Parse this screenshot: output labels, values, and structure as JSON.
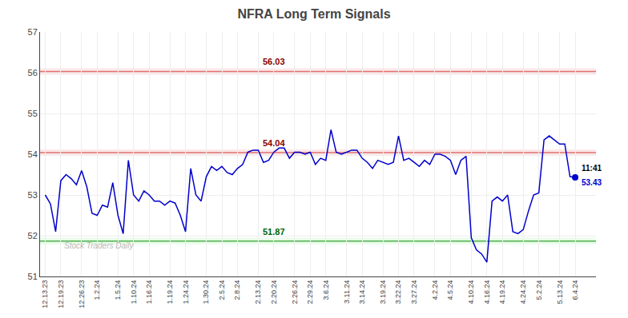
{
  "chart_data": {
    "type": "line",
    "title": "NFRA Long Term Signals",
    "watermark": "Stock Traders Daily",
    "categories": [
      "12.13.23",
      null,
      null,
      "12.19.23",
      null,
      null,
      null,
      "12.26.23",
      null,
      null,
      "1.2.24",
      null,
      null,
      null,
      "1.5.24",
      null,
      null,
      "1.10.24",
      null,
      null,
      "1.16.24",
      null,
      null,
      null,
      "1.19.24",
      null,
      null,
      "1.24.24",
      null,
      null,
      null,
      "1.30.24",
      null,
      null,
      "2.5.24",
      null,
      null,
      "2.8.24",
      null,
      null,
      null,
      "2.13.24",
      null,
      null,
      "2.20.24",
      null,
      null,
      null,
      "2.26.24",
      null,
      null,
      "2.29.24",
      null,
      null,
      "3.6.24",
      null,
      null,
      null,
      "3.11.24",
      null,
      null,
      "3.14.24",
      null,
      null,
      null,
      "3.19.24",
      null,
      null,
      "3.22.24",
      null,
      null,
      "3.27.24",
      null,
      null,
      null,
      "4.2.24",
      null,
      null,
      "4.5.24",
      null,
      null,
      null,
      "4.10.24",
      null,
      null,
      "4.16.24",
      null,
      null,
      "4.19.24",
      null,
      null,
      null,
      "4.24.24",
      null,
      null,
      "5.2.24",
      null,
      null,
      null,
      "5.13.24",
      null,
      null,
      "6.4.24"
    ],
    "values": [
      53.0,
      52.78,
      52.1,
      53.35,
      53.5,
      53.4,
      53.25,
      53.6,
      53.2,
      52.55,
      52.5,
      52.75,
      52.7,
      53.3,
      52.5,
      52.05,
      53.85,
      53.0,
      52.85,
      53.1,
      53.0,
      52.85,
      52.85,
      52.75,
      52.85,
      52.8,
      52.5,
      52.1,
      53.65,
      53.0,
      52.85,
      53.45,
      53.7,
      53.6,
      53.7,
      53.55,
      53.5,
      53.65,
      53.75,
      54.05,
      54.1,
      54.1,
      53.8,
      53.85,
      54.05,
      54.15,
      54.15,
      53.9,
      54.05,
      54.05,
      54.0,
      54.05,
      53.75,
      53.9,
      53.85,
      54.6,
      54.05,
      54.0,
      54.05,
      54.1,
      54.1,
      53.9,
      53.8,
      53.65,
      53.85,
      53.8,
      53.75,
      53.8,
      54.45,
      53.85,
      53.9,
      53.8,
      53.7,
      53.85,
      53.75,
      54.0,
      54.0,
      53.95,
      53.85,
      53.5,
      53.85,
      53.95,
      51.95,
      51.65,
      51.55,
      51.35,
      52.85,
      52.95,
      52.85,
      53.0,
      52.1,
      52.05,
      52.15,
      52.6,
      53.0,
      53.05,
      54.35,
      54.45,
      54.35,
      54.25,
      54.25,
      53.45,
      53.43
    ],
    "color": "#0000cc",
    "ylim": [
      51,
      57
    ],
    "yticks": [
      51,
      52,
      53,
      54,
      55,
      56,
      57
    ],
    "grid": true,
    "hlines": [
      {
        "value": 56.03,
        "label": "56.03",
        "color": "#e07070",
        "band_color": "#fce8e8",
        "label_color": "darkred"
      },
      {
        "value": 54.04,
        "label": "54.04",
        "color": "#e07070",
        "band_color": "#fce8e8",
        "label_color": "darkred"
      },
      {
        "value": 51.87,
        "label": "51.87",
        "color": "#50b050",
        "band_color": "#e8fce8",
        "label_color": "darkgreen"
      }
    ],
    "last_point": {
      "time": "11:41",
      "value_label": "53.43"
    }
  }
}
